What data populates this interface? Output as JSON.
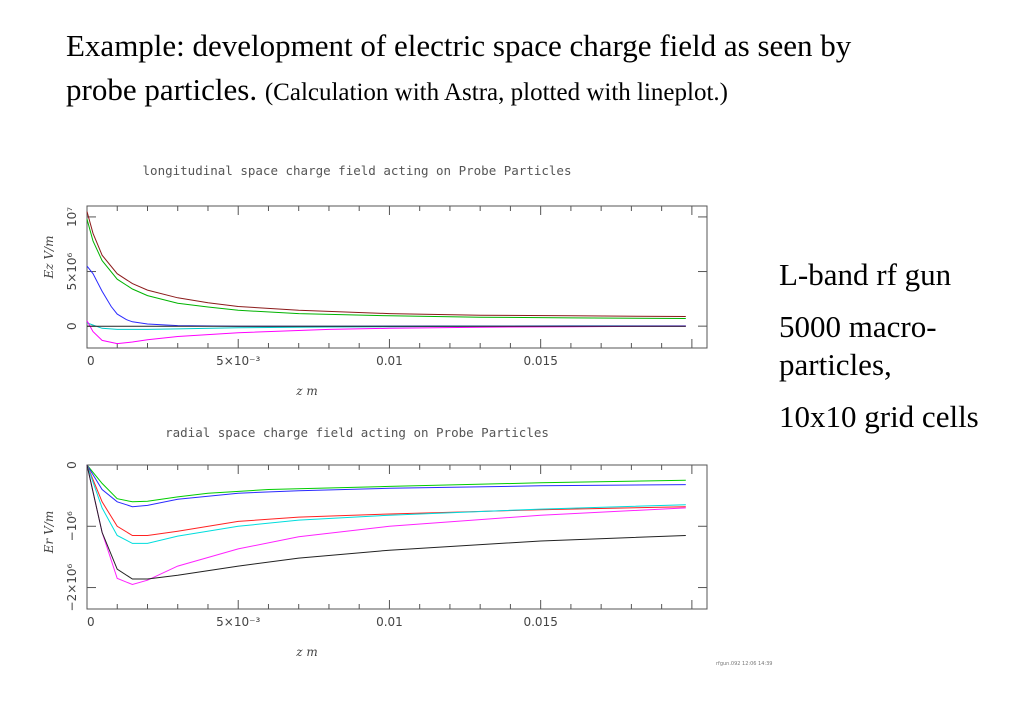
{
  "slide": {
    "title_main": "Example: development of electric space charge field as seen by probe particles.",
    "title_sub": "(Calculation with Astra, plotted with lineplot.)",
    "notes": [
      "L-band rf gun",
      "5000 macro-particles,",
      "10x10 grid cells"
    ]
  },
  "chart_data": [
    {
      "type": "line",
      "title": "longitudinal space charge field acting on Probe Particles",
      "xlabel": "z  m",
      "ylabel": "Ez  V/m",
      "xlim": [
        0,
        0.0205
      ],
      "ylim": [
        -2000000,
        11000000
      ],
      "x_ticks": [
        {
          "v": 0,
          "label": "0"
        },
        {
          "v": 0.005,
          "label": "5×10⁻³"
        },
        {
          "v": 0.01,
          "label": "0.01"
        },
        {
          "v": 0.015,
          "label": "0.015"
        }
      ],
      "y_ticks": [
        {
          "v": 0,
          "label": "0"
        },
        {
          "v": 5000000,
          "label": "5×10⁶"
        },
        {
          "v": 10000000,
          "label": "10⁷"
        }
      ],
      "series": [
        {
          "color": "#8b1a1a",
          "x": [
            0,
            0.0002,
            0.0005,
            0.001,
            0.0015,
            0.002,
            0.003,
            0.004,
            0.005,
            0.007,
            0.01,
            0.013,
            0.016,
            0.0198
          ],
          "y": [
            10500000,
            8500000,
            6500000,
            4800000,
            3900000,
            3300000,
            2600000,
            2150000,
            1800000,
            1450000,
            1150000,
            1000000,
            950000,
            880000
          ]
        },
        {
          "color": "#00b300",
          "x": [
            0,
            0.0002,
            0.0005,
            0.001,
            0.0015,
            0.002,
            0.003,
            0.004,
            0.005,
            0.007,
            0.01,
            0.013,
            0.016,
            0.0198
          ],
          "y": [
            9800000,
            7800000,
            6000000,
            4300000,
            3400000,
            2800000,
            2100000,
            1750000,
            1450000,
            1150000,
            950000,
            820000,
            760000,
            700000
          ]
        },
        {
          "color": "#2a2aff",
          "x": [
            0,
            0.0002,
            0.0005,
            0.0008,
            0.001,
            0.0013,
            0.0015,
            0.002,
            0.003,
            0.005,
            0.008,
            0.012,
            0.016,
            0.0198
          ],
          "y": [
            5500000,
            4800000,
            3200000,
            1800000,
            1100000,
            600000,
            400000,
            200000,
            50000,
            0,
            0,
            10000,
            20000,
            20000
          ]
        },
        {
          "color": "#00cccc",
          "x": [
            0,
            0.0005,
            0.001,
            0.002,
            0.003,
            0.005,
            0.008,
            0.01,
            0.012,
            0.016,
            0.0198
          ],
          "y": [
            300000,
            -200000,
            -300000,
            -300000,
            -250000,
            -150000,
            -80000,
            -50000,
            -20000,
            0,
            0
          ]
        },
        {
          "color": "#ff00ff",
          "x": [
            0,
            0.0002,
            0.0005,
            0.001,
            0.0015,
            0.002,
            0.003,
            0.005,
            0.008,
            0.01,
            0.013,
            0.016,
            0.0198
          ],
          "y": [
            500000,
            -500000,
            -1300000,
            -1600000,
            -1450000,
            -1250000,
            -950000,
            -600000,
            -300000,
            -200000,
            -100000,
            -50000,
            0
          ]
        },
        {
          "color": "#222222",
          "x": [
            0,
            0.002,
            0.005,
            0.01,
            0.015,
            0.0198
          ],
          "y": [
            0,
            0,
            0,
            0,
            0,
            0
          ]
        }
      ]
    },
    {
      "type": "line",
      "title": "radial space charge field acting on Probe Particles",
      "xlabel": "z  m",
      "ylabel": "Er  V/m",
      "xlim": [
        0,
        0.0205
      ],
      "ylim": [
        -2350000,
        0
      ],
      "x_ticks": [
        {
          "v": 0,
          "label": "0"
        },
        {
          "v": 0.005,
          "label": "5×10⁻³"
        },
        {
          "v": 0.01,
          "label": "0.01"
        },
        {
          "v": 0.015,
          "label": "0.015"
        }
      ],
      "y_ticks": [
        {
          "v": 0,
          "label": "0"
        },
        {
          "v": -1000000,
          "label": "−10⁶"
        },
        {
          "v": -2000000,
          "label": "−2×10⁶"
        }
      ],
      "series": [
        {
          "color": "#00cc00",
          "x": [
            0,
            0.0005,
            0.001,
            0.0015,
            0.002,
            0.003,
            0.004,
            0.006,
            0.01,
            0.015,
            0.0198
          ],
          "y": [
            0,
            -300000,
            -550000,
            -600000,
            -590000,
            -520000,
            -460000,
            -400000,
            -350000,
            -290000,
            -250000
          ]
        },
        {
          "color": "#2a2aff",
          "x": [
            0,
            0.0005,
            0.001,
            0.0015,
            0.002,
            0.003,
            0.005,
            0.007,
            0.01,
            0.015,
            0.0198
          ],
          "y": [
            0,
            -400000,
            -600000,
            -680000,
            -660000,
            -560000,
            -460000,
            -420000,
            -380000,
            -340000,
            -320000
          ]
        },
        {
          "color": "#ff2222",
          "x": [
            0,
            0.0005,
            0.001,
            0.0015,
            0.002,
            0.003,
            0.005,
            0.007,
            0.01,
            0.015,
            0.0198
          ],
          "y": [
            0,
            -600000,
            -1000000,
            -1150000,
            -1150000,
            -1080000,
            -920000,
            -850000,
            -800000,
            -730000,
            -680000
          ]
        },
        {
          "color": "#00dddd",
          "x": [
            0,
            0.0005,
            0.001,
            0.0015,
            0.002,
            0.003,
            0.005,
            0.007,
            0.01,
            0.015,
            0.0198
          ],
          "y": [
            0,
            -700000,
            -1150000,
            -1280000,
            -1280000,
            -1160000,
            -1000000,
            -900000,
            -820000,
            -720000,
            -650000
          ]
        },
        {
          "color": "#ff22ff",
          "x": [
            0,
            0.0005,
            0.001,
            0.0015,
            0.002,
            0.003,
            0.005,
            0.007,
            0.01,
            0.015,
            0.0198
          ],
          "y": [
            0,
            -1100000,
            -1850000,
            -1950000,
            -1880000,
            -1650000,
            -1370000,
            -1170000,
            -1000000,
            -820000,
            -700000
          ]
        },
        {
          "color": "#222222",
          "x": [
            0,
            0.0005,
            0.001,
            0.0015,
            0.002,
            0.003,
            0.005,
            0.007,
            0.01,
            0.015,
            0.0198
          ],
          "y": [
            0,
            -1100000,
            -1700000,
            -1860000,
            -1860000,
            -1800000,
            -1650000,
            -1520000,
            -1390000,
            -1240000,
            -1150000
          ]
        }
      ]
    }
  ],
  "stamp": "rfgun.092  12:06  14:39"
}
